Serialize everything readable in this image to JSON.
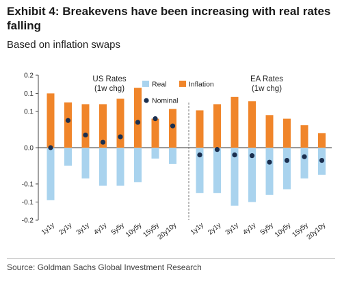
{
  "header": {
    "title": "Exhibit 4: Breakevens have been increasing with real rates falling",
    "subtitle": "Based on inflation swaps"
  },
  "footer": {
    "source": "Source: Goldman Sachs Global Investment Research"
  },
  "colors": {
    "real": "#a9d3ee",
    "inflation": "#f0852a",
    "nominal": "#1b2f4f"
  },
  "chart_data": {
    "type": "bar",
    "ylim": [
      -0.2,
      0.2
    ],
    "yticks": [
      "0.2",
      "0.1",
      "0.1",
      "0.0",
      "-0.1",
      "-0.1",
      "-0.2"
    ],
    "ytick_values": [
      0.2,
      0.15,
      0.1,
      0.0,
      -0.1,
      -0.15,
      -0.2
    ],
    "legend": {
      "position": "top",
      "real": "Real",
      "inflation": "Inflation",
      "nominal": "Nominal"
    },
    "panels": [
      {
        "label_line1": "US Rates",
        "label_line2": "(1w chg)",
        "categories": [
          "1y1y",
          "2y1y",
          "3y1y",
          "4y1y",
          "5y5y",
          "10y5y",
          "15y5y",
          "20y10y"
        ],
        "series": [
          {
            "name": "Real",
            "values": [
              -0.145,
              -0.05,
              -0.085,
              -0.105,
              -0.105,
              -0.095,
              -0.03,
              -0.045
            ]
          },
          {
            "name": "Inflation",
            "values": [
              0.15,
              0.125,
              0.12,
              0.12,
              0.135,
              0.165,
              0.08,
              0.107
            ]
          },
          {
            "name": "Nominal",
            "values": [
              0.0,
              0.075,
              0.035,
              0.015,
              0.03,
              0.07,
              0.08,
              0.06
            ]
          }
        ]
      },
      {
        "label_line1": "EA Rates",
        "label_line2": "(1w chg)",
        "categories": [
          "1y1y",
          "2y1y",
          "3y1y",
          "4y1y",
          "5y5y",
          "10y5y",
          "15y5y",
          "20y10y"
        ],
        "series": [
          {
            "name": "Real",
            "values": [
              -0.125,
              -0.125,
              -0.16,
              -0.15,
              -0.13,
              -0.115,
              -0.085,
              -0.075
            ]
          },
          {
            "name": "Inflation",
            "values": [
              0.103,
              0.12,
              0.14,
              0.128,
              0.09,
              0.08,
              0.062,
              0.04
            ]
          },
          {
            "name": "Nominal",
            "values": [
              -0.02,
              -0.005,
              -0.02,
              -0.022,
              -0.04,
              -0.035,
              -0.025,
              -0.035
            ]
          }
        ]
      }
    ]
  }
}
